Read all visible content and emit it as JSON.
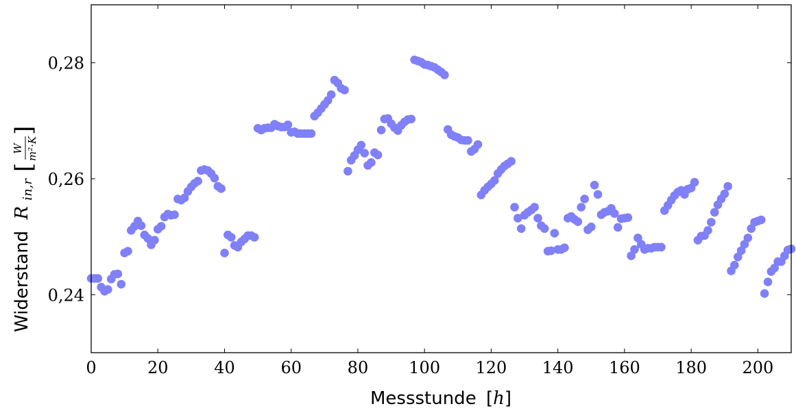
{
  "chart_data": {
    "type": "scatter",
    "xlabel": {
      "text": "Messstunde",
      "unit": "h"
    },
    "ylabel": {
      "text": "Widerstand",
      "symbol": "R",
      "subscript": "in,r",
      "unit_numerator": "W",
      "unit_denominator": "m²·K"
    },
    "xlim": [
      0,
      210
    ],
    "ylim": [
      0.23,
      0.29
    ],
    "xticks": [
      0,
      20,
      40,
      60,
      80,
      100,
      120,
      140,
      160,
      180,
      200
    ],
    "xtick_labels": [
      "0",
      "20",
      "40",
      "60",
      "80",
      "100",
      "120",
      "140",
      "160",
      "180",
      "200"
    ],
    "yticks": [
      0.24,
      0.26,
      0.28
    ],
    "ytick_labels": [
      "0,24",
      "0,26",
      "0,28"
    ],
    "grid": false,
    "marker_color": "#8080f8",
    "points": [
      [
        0,
        0.2428
      ],
      [
        1,
        0.2428
      ],
      [
        2,
        0.2428
      ],
      [
        3,
        0.2413
      ],
      [
        4,
        0.2406
      ],
      [
        5,
        0.2409
      ],
      [
        6,
        0.2427
      ],
      [
        7,
        0.2435
      ],
      [
        8,
        0.2436
      ],
      [
        9,
        0.2418
      ],
      [
        10,
        0.2472
      ],
      [
        11,
        0.2475
      ],
      [
        12,
        0.2511
      ],
      [
        13,
        0.2518
      ],
      [
        14,
        0.2527
      ],
      [
        15,
        0.2519
      ],
      [
        16,
        0.2503
      ],
      [
        17,
        0.2497
      ],
      [
        18,
        0.2486
      ],
      [
        19,
        0.2494
      ],
      [
        20,
        0.2513
      ],
      [
        21,
        0.2518
      ],
      [
        22,
        0.2534
      ],
      [
        23,
        0.2539
      ],
      [
        24,
        0.2537
      ],
      [
        25,
        0.2538
      ],
      [
        26,
        0.2565
      ],
      [
        27,
        0.2563
      ],
      [
        28,
        0.2567
      ],
      [
        29,
        0.2578
      ],
      [
        30,
        0.2586
      ],
      [
        31,
        0.2592
      ],
      [
        32,
        0.2596
      ],
      [
        33,
        0.2614
      ],
      [
        34,
        0.2616
      ],
      [
        35,
        0.2614
      ],
      [
        36,
        0.2609
      ],
      [
        37,
        0.2601
      ],
      [
        38,
        0.2587
      ],
      [
        39,
        0.2583
      ],
      [
        40,
        0.2472
      ],
      [
        41,
        0.2503
      ],
      [
        42,
        0.2499
      ],
      [
        43,
        0.2485
      ],
      [
        44,
        0.2482
      ],
      [
        45,
        0.2491
      ],
      [
        46,
        0.2496
      ],
      [
        47,
        0.2502
      ],
      [
        48,
        0.2502
      ],
      [
        49,
        0.2499
      ],
      [
        50,
        0.2687
      ],
      [
        51,
        0.2684
      ],
      [
        52,
        0.2687
      ],
      [
        53,
        0.2688
      ],
      [
        54,
        0.2688
      ],
      [
        55,
        0.2694
      ],
      [
        56,
        0.2691
      ],
      [
        57,
        0.2689
      ],
      [
        58,
        0.2689
      ],
      [
        59,
        0.2693
      ],
      [
        60,
        0.268
      ],
      [
        61,
        0.2681
      ],
      [
        62,
        0.2678
      ],
      [
        63,
        0.2678
      ],
      [
        64,
        0.2678
      ],
      [
        65,
        0.2678
      ],
      [
        66,
        0.2678
      ],
      [
        67,
        0.2708
      ],
      [
        68,
        0.2714
      ],
      [
        69,
        0.2721
      ],
      [
        70,
        0.2728
      ],
      [
        71,
        0.2735
      ],
      [
        72,
        0.2745
      ],
      [
        73,
        0.277
      ],
      [
        74,
        0.2765
      ],
      [
        75,
        0.2756
      ],
      [
        76,
        0.2753
      ],
      [
        77,
        0.2613
      ],
      [
        78,
        0.2632
      ],
      [
        79,
        0.264
      ],
      [
        80,
        0.265
      ],
      [
        81,
        0.2658
      ],
      [
        82,
        0.2644
      ],
      [
        83,
        0.2623
      ],
      [
        84,
        0.2628
      ],
      [
        85,
        0.2645
      ],
      [
        86,
        0.2641
      ],
      [
        87,
        0.2684
      ],
      [
        88,
        0.2703
      ],
      [
        89,
        0.2704
      ],
      [
        90,
        0.2695
      ],
      [
        91,
        0.2688
      ],
      [
        92,
        0.2683
      ],
      [
        93,
        0.2692
      ],
      [
        94,
        0.2698
      ],
      [
        95,
        0.2702
      ],
      [
        96,
        0.2703
      ],
      [
        97,
        0.2805
      ],
      [
        98,
        0.2803
      ],
      [
        99,
        0.2801
      ],
      [
        100,
        0.2797
      ],
      [
        101,
        0.2796
      ],
      [
        102,
        0.2794
      ],
      [
        103,
        0.2792
      ],
      [
        104,
        0.2788
      ],
      [
        105,
        0.2784
      ],
      [
        106,
        0.2779
      ],
      [
        107,
        0.2685
      ],
      [
        108,
        0.2676
      ],
      [
        109,
        0.2673
      ],
      [
        110,
        0.2671
      ],
      [
        111,
        0.2667
      ],
      [
        112,
        0.2666
      ],
      [
        113,
        0.2666
      ],
      [
        114,
        0.2647
      ],
      [
        115,
        0.2651
      ],
      [
        116,
        0.2659
      ],
      [
        117,
        0.2572
      ],
      [
        118,
        0.258
      ],
      [
        119,
        0.2586
      ],
      [
        120,
        0.2591
      ],
      [
        121,
        0.2597
      ],
      [
        122,
        0.2609
      ],
      [
        123,
        0.2616
      ],
      [
        124,
        0.2622
      ],
      [
        125,
        0.2626
      ],
      [
        126,
        0.263
      ],
      [
        127,
        0.2551
      ],
      [
        128,
        0.2532
      ],
      [
        129,
        0.2514
      ],
      [
        130,
        0.2537
      ],
      [
        131,
        0.2542
      ],
      [
        132,
        0.2546
      ],
      [
        133,
        0.2551
      ],
      [
        134,
        0.2532
      ],
      [
        135,
        0.2519
      ],
      [
        136,
        0.2514
      ],
      [
        137,
        0.2475
      ],
      [
        138,
        0.2476
      ],
      [
        139,
        0.2506
      ],
      [
        140,
        0.2478
      ],
      [
        141,
        0.2478
      ],
      [
        142,
        0.2481
      ],
      [
        143,
        0.2532
      ],
      [
        144,
        0.2535
      ],
      [
        145,
        0.253
      ],
      [
        146,
        0.2526
      ],
      [
        147,
        0.2551
      ],
      [
        148,
        0.2565
      ],
      [
        149,
        0.2512
      ],
      [
        150,
        0.2517
      ],
      [
        151,
        0.2589
      ],
      [
        152,
        0.2573
      ],
      [
        153,
        0.2538
      ],
      [
        154,
        0.2542
      ],
      [
        155,
        0.2544
      ],
      [
        156,
        0.2549
      ],
      [
        157,
        0.254
      ],
      [
        158,
        0.2516
      ],
      [
        159,
        0.2531
      ],
      [
        160,
        0.2532
      ],
      [
        161,
        0.2533
      ],
      [
        162,
        0.2467
      ],
      [
        163,
        0.2478
      ],
      [
        164,
        0.2498
      ],
      [
        165,
        0.2487
      ],
      [
        166,
        0.2478
      ],
      [
        167,
        0.248
      ],
      [
        168,
        0.248
      ],
      [
        169,
        0.2482
      ],
      [
        170,
        0.2482
      ],
      [
        171,
        0.2482
      ],
      [
        172,
        0.2545
      ],
      [
        173,
        0.2554
      ],
      [
        174,
        0.2563
      ],
      [
        175,
        0.2571
      ],
      [
        176,
        0.2577
      ],
      [
        177,
        0.258
      ],
      [
        178,
        0.2573
      ],
      [
        179,
        0.2582
      ],
      [
        180,
        0.2584
      ],
      [
        181,
        0.2594
      ],
      [
        182,
        0.2494
      ],
      [
        183,
        0.2501
      ],
      [
        184,
        0.2502
      ],
      [
        185,
        0.2511
      ],
      [
        186,
        0.2525
      ],
      [
        187,
        0.2542
      ],
      [
        188,
        0.2555
      ],
      [
        189,
        0.2565
      ],
      [
        190,
        0.2574
      ],
      [
        191,
        0.2587
      ],
      [
        192,
        0.2441
      ],
      [
        193,
        0.2451
      ],
      [
        194,
        0.2465
      ],
      [
        195,
        0.2476
      ],
      [
        196,
        0.2487
      ],
      [
        197,
        0.2498
      ],
      [
        198,
        0.2514
      ],
      [
        199,
        0.2525
      ],
      [
        200,
        0.2527
      ],
      [
        201,
        0.2529
      ],
      [
        202,
        0.2402
      ],
      [
        203,
        0.2422
      ],
      [
        204,
        0.244
      ],
      [
        205,
        0.2446
      ],
      [
        206,
        0.2457
      ],
      [
        207,
        0.2457
      ],
      [
        208,
        0.2467
      ],
      [
        209,
        0.2477
      ],
      [
        210,
        0.2479
      ]
    ]
  }
}
